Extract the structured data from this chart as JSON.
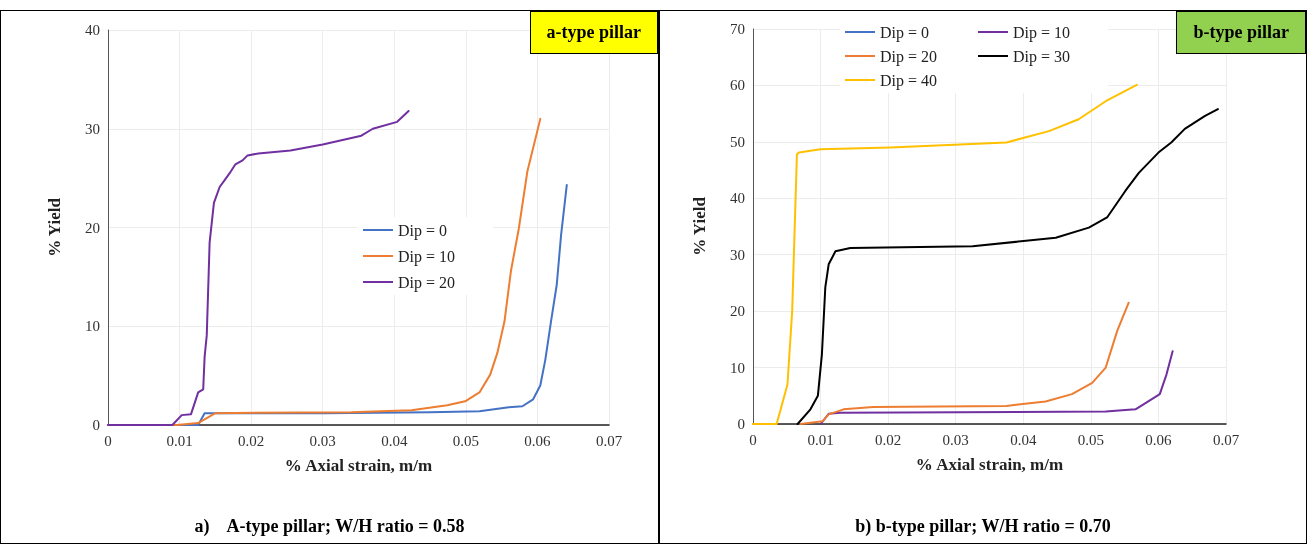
{
  "chart_data": [
    {
      "type": "line",
      "xlabel": "% Axial strain, m/m",
      "ylabel": "% Yield",
      "xlim": [
        0,
        0.07
      ],
      "xticks": [
        0,
        0.01,
        0.02,
        0.03,
        0.04,
        0.05,
        0.06,
        0.07
      ],
      "ylim": [
        0,
        40
      ],
      "yticks": [
        0,
        10,
        20,
        30,
        40
      ],
      "grid": true,
      "legend": "right",
      "marker": "none",
      "line_style": "solid",
      "annotations": [
        "a-type pillar",
        "a)    A-type pillar; W/H ratio = 0.58"
      ],
      "series": [
        {
          "name": "Dip = 0",
          "color": "#4472c4",
          "x": [
            0,
            0.0126,
            0.0135,
            0.03,
            0.045,
            0.0519,
            0.056,
            0.0579,
            0.0594,
            0.0604,
            0.0611,
            0.0619,
            0.0627,
            0.0633,
            0.0641
          ],
          "values": [
            0,
            0,
            1.2,
            1.2,
            1.3,
            1.4,
            1.8,
            1.9,
            2.6,
            4.0,
            6.6,
            10.5,
            14.2,
            19.2,
            24.3
          ]
        },
        {
          "name": "Dip = 10",
          "color": "#ed7d31",
          "x": [
            0,
            0.0096,
            0.0126,
            0.015,
            0.034,
            0.0424,
            0.0474,
            0.0499,
            0.0519,
            0.0534,
            0.0544,
            0.0554,
            0.0563,
            0.0574,
            0.0586,
            0.0604
          ],
          "values": [
            0,
            0,
            0.2,
            1.2,
            1.3,
            1.5,
            2.0,
            2.4,
            3.3,
            5.1,
            7.3,
            10.5,
            15.6,
            19.9,
            25.7,
            31.0
          ]
        },
        {
          "name": "Dip = 20",
          "color": "#7030a0",
          "x": [
            0,
            0.009,
            0.0103,
            0.0116,
            0.0126,
            0.0133,
            0.0135,
            0.0138,
            0.0142,
            0.0148,
            0.0156,
            0.0163,
            0.017,
            0.0178,
            0.0188,
            0.0195,
            0.021,
            0.0255,
            0.03,
            0.0354,
            0.037,
            0.0404,
            0.042
          ],
          "values": [
            0,
            0,
            1.0,
            1.1,
            3.3,
            3.6,
            6.9,
            9.1,
            18.5,
            22.5,
            24.1,
            24.8,
            25.5,
            26.4,
            26.8,
            27.3,
            27.5,
            27.8,
            28.4,
            29.3,
            30.0,
            30.7,
            31.8
          ]
        }
      ]
    },
    {
      "type": "line",
      "xlabel": "% Axial strain, m/m",
      "ylabel": "% Yield",
      "xlim": [
        0,
        0.07
      ],
      "xticks": [
        0,
        0.01,
        0.02,
        0.03,
        0.04,
        0.05,
        0.06,
        0.07
      ],
      "ylim": [
        0,
        70
      ],
      "yticks": [
        0,
        10,
        20,
        30,
        40,
        50,
        60,
        70
      ],
      "grid": true,
      "legend": "top",
      "marker": "none",
      "line_style": "solid",
      "annotations": [
        "b-type pillar",
        "b) b-type pillar; W/H ratio = 0.70"
      ],
      "series": [
        {
          "name": "Dip = 0",
          "color": "#4472c4"
        },
        {
          "name": "Dip = 10",
          "color": "#7030a0",
          "x": [
            0.01,
            0.0112,
            0.0129,
            0.0522,
            0.0566,
            0.0585,
            0.0602,
            0.0612,
            0.0621
          ],
          "values": [
            0,
            1.8,
            2.0,
            2.2,
            2.6,
            4.0,
            5.3,
            8.8,
            12.9
          ]
        },
        {
          "name": "Dip = 20",
          "color": "#ed7d31",
          "x": [
            0.007,
            0.0103,
            0.0112,
            0.0134,
            0.0178,
            0.0375,
            0.0433,
            0.0472,
            0.0502,
            0.0522,
            0.0539,
            0.0556
          ],
          "values": [
            0,
            0.5,
            1.7,
            2.6,
            3.0,
            3.2,
            4.0,
            5.3,
            7.3,
            10.0,
            16.5,
            21.5
          ]
        },
        {
          "name": "Dip = 30",
          "color": "#000000",
          "x": [
            0.0066,
            0.0085,
            0.0096,
            0.0102,
            0.0107,
            0.0112,
            0.0122,
            0.0144,
            0.0325,
            0.0448,
            0.0497,
            0.0524,
            0.0551,
            0.0571,
            0.06,
            0.0619,
            0.0639,
            0.0669,
            0.0688
          ],
          "values": [
            0,
            2.6,
            5,
            12.4,
            24.2,
            28.3,
            30.6,
            31.2,
            31.5,
            33,
            34.8,
            36.6,
            41.3,
            44.5,
            48.1,
            49.9,
            52.3,
            54.6,
            55.8
          ]
        },
        {
          "name": "Dip = 40",
          "color": "#ffc000",
          "x": [
            0,
            0.0035,
            0.0051,
            0.0058,
            0.0062,
            0.0065,
            0.0068,
            0.01,
            0.0203,
            0.0375,
            0.0438,
            0.0482,
            0.0522,
            0.0568
          ],
          "values": [
            0,
            0,
            7.0,
            20,
            36,
            47.8,
            48.1,
            48.7,
            49,
            49.9,
            51.9,
            54,
            57.2,
            60.1
          ]
        }
      ]
    }
  ]
}
